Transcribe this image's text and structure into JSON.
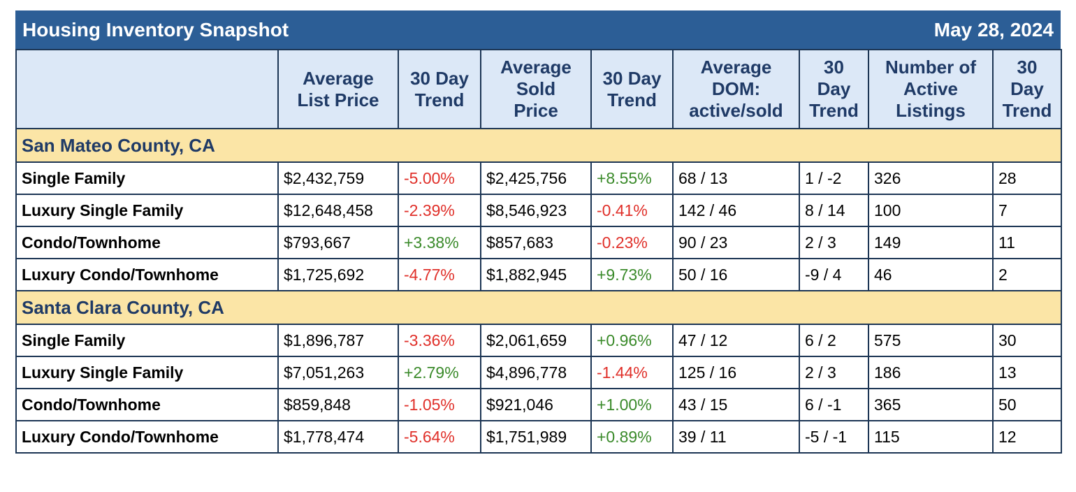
{
  "header": {
    "title": "Housing Inventory Snapshot",
    "date": "May 28, 2024"
  },
  "table": {
    "columns": [
      [],
      [
        "Average",
        "List Price"
      ],
      [
        "30 Day",
        "Trend"
      ],
      [
        "Average",
        "Sold",
        "Price"
      ],
      [
        "30 Day",
        "Trend"
      ],
      [
        "Average",
        "DOM:",
        "active/sold"
      ],
      [
        "30",
        "Day",
        "Trend"
      ],
      [
        "Number of",
        "Active",
        "Listings"
      ],
      [
        "30",
        "Day",
        "Trend"
      ]
    ],
    "sections": [
      {
        "name": "San Mateo County, CA",
        "rows": [
          [
            "Single Family",
            "$2,432,759",
            "-5.00%",
            "$2,425,756",
            "+8.55%",
            "68 / 13",
            "1 / -2",
            "326",
            "28"
          ],
          [
            "Luxury Single Family",
            "$12,648,458",
            "-2.39%",
            "$8,546,923",
            "-0.41%",
            "142 / 46",
            "8 / 14",
            "100",
            "7"
          ],
          [
            "Condo/Townhome",
            "$793,667",
            "+3.38%",
            "$857,683",
            "-0.23%",
            "90 / 23",
            "2 / 3",
            "149",
            "11"
          ],
          [
            "Luxury Condo/Townhome",
            "$1,725,692",
            "-4.77%",
            "$1,882,945",
            "+9.73%",
            "50 / 16",
            "-9 / 4",
            "46",
            "2"
          ]
        ]
      },
      {
        "name": "Santa Clara County, CA",
        "rows": [
          [
            "Single Family",
            "$1,896,787",
            "-3.36%",
            "$2,061,659",
            "+0.96%",
            "47 / 12",
            "6 / 2",
            "575",
            "30"
          ],
          [
            "Luxury Single Family",
            "$7,051,263",
            "+2.79%",
            "$4,896,778",
            "-1.44%",
            "125 / 16",
            "2 / 3",
            "186",
            "13"
          ],
          [
            "Condo/Townhome",
            "$859,848",
            "-1.05%",
            "$921,046",
            "+1.00%",
            "43 / 15",
            "6 / -1",
            "365",
            "50"
          ],
          [
            "Luxury Condo/Townhome",
            "$1,778,474",
            "-5.64%",
            "$1,751,989",
            "+0.89%",
            "39 / 11",
            "-5 / -1",
            "115",
            "12"
          ]
        ]
      }
    ]
  }
}
